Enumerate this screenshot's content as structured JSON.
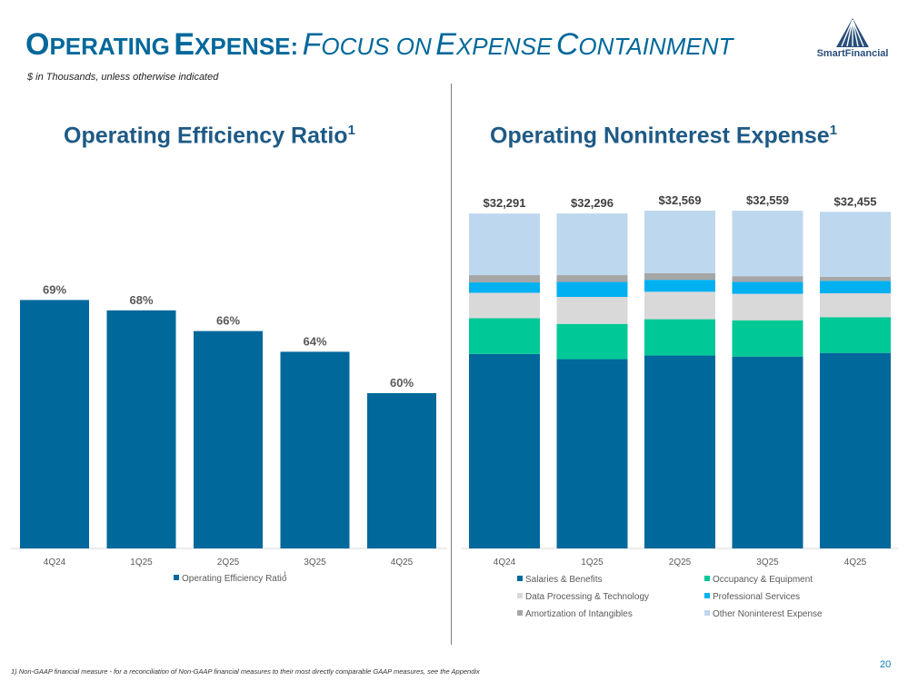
{
  "slide": {
    "title_word1_cap": "O",
    "title_word1_rest": "PERATING",
    "title_word2_cap": "E",
    "title_word2_rest": "XPENSE:",
    "title_it1_cap": "F",
    "title_it1_rest": "OCUS ON",
    "title_it2_cap": "E",
    "title_it2_rest": "XPENSE",
    "title_it3_cap": "C",
    "title_it3_rest": "ONTAINMENT",
    "subtitle": "$ in Thousands, unless otherwise indicated",
    "logo_text": "SmartFinancial",
    "footnote": "1) Non-GAAP financial measure - for a reconciliation of Non-GAAP financial measures to their most directly comparable GAAP measures, see the Appendix",
    "page_number": "20",
    "colors": {
      "brand": "#00689b",
      "panel_title": "#1e5a85"
    }
  },
  "chart_data": [
    {
      "type": "bar",
      "title": "Operating Efficiency Ratio",
      "title_sup": "1",
      "categories": [
        "4Q24",
        "1Q25",
        "2Q25",
        "3Q25",
        "4Q25"
      ],
      "series": [
        {
          "name": "Operating Efficiency Ratio",
          "values": [
            69,
            68,
            66,
            64,
            60
          ],
          "color": "#00689b"
        }
      ],
      "data_labels": [
        "69%",
        "68%",
        "66%",
        "64%",
        "60%"
      ],
      "legend_sup": "1",
      "ylim": [
        45,
        70
      ],
      "legend": "bottom"
    },
    {
      "type": "bar",
      "stacked": true,
      "title": "Operating Noninterest Expense",
      "title_sup": "1",
      "categories": [
        "4Q24",
        "1Q25",
        "2Q25",
        "3Q25",
        "4Q25"
      ],
      "totals": [
        "$32,291",
        "$32,296",
        "$32,569",
        "$32,559",
        "$32,455"
      ],
      "series": [
        {
          "name": "Salaries & Benefits",
          "values": [
            18750,
            18250,
            18600,
            18500,
            18850
          ],
          "color": "#00689b"
        },
        {
          "name": "Occupancy & Equipment",
          "values": [
            3450,
            3400,
            3500,
            3500,
            3450
          ],
          "color": "#00c896"
        },
        {
          "name": "Data Processing & Technology",
          "values": [
            2450,
            2600,
            2650,
            2550,
            2300
          ],
          "color": "#d9d9d9"
        },
        {
          "name": "Professional Services",
          "values": [
            1000,
            1450,
            1150,
            1150,
            1200
          ],
          "color": "#00b0f0"
        },
        {
          "name": "Amortization of Intangibles",
          "values": [
            700,
            650,
            650,
            550,
            400
          ],
          "color": "#a6a6a6"
        },
        {
          "name": "Other Noninterest Expense",
          "values": [
            5941,
            5946,
            6019,
            6309,
            6255
          ],
          "color": "#bdd7ee"
        }
      ],
      "ylim": [
        0,
        32569
      ],
      "legend": "bottom"
    }
  ]
}
